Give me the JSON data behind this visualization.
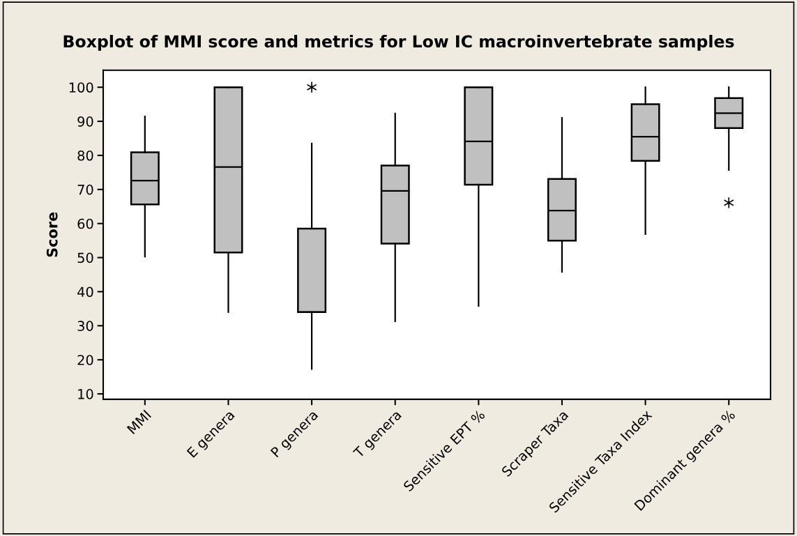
{
  "chart_data": {
    "type": "box",
    "title": "Boxplot of MMI score and metrics for Low IC macroinvertebrate samples",
    "ylabel": "Score",
    "categories": [
      "MMI",
      "E genera",
      "P genera",
      "T genera",
      "Sensitive EPT %",
      "Scraper Taxa",
      "Sensitive Taxa Index",
      "Dominant genera %"
    ],
    "boxes": [
      {
        "low": 50.3,
        "q1": 65.6,
        "median": 72.6,
        "q3": 80.9,
        "high": 91.4
      },
      {
        "low": 34.0,
        "q1": 51.5,
        "median": 76.6,
        "q3": 100,
        "high": 100
      },
      {
        "low": 17.3,
        "q1": 34.0,
        "median": 34.0,
        "q3": 58.5,
        "high": 83.5,
        "outliers": [
          100
        ]
      },
      {
        "low": 31.3,
        "q1": 54.1,
        "median": 69.6,
        "q3": 77.0,
        "high": 92.3
      },
      {
        "low": 35.8,
        "q1": 71.4,
        "median": 84.1,
        "q3": 100,
        "high": 100
      },
      {
        "low": 45.8,
        "q1": 55.0,
        "median": 63.8,
        "q3": 73.1,
        "high": 91.0
      },
      {
        "low": 56.9,
        "q1": 78.4,
        "median": 85.5,
        "q3": 95.0,
        "high": 100
      },
      {
        "low": 75.7,
        "q1": 88.0,
        "median": 92.4,
        "q3": 96.8,
        "high": 100,
        "outliers": [
          66.1
        ]
      }
    ],
    "color": "#c0c0c0",
    "ylim": [
      8.4,
      105
    ],
    "yticks": [
      10,
      20,
      30,
      40,
      50,
      60,
      70,
      80,
      90,
      100
    ],
    "grid": false
  }
}
